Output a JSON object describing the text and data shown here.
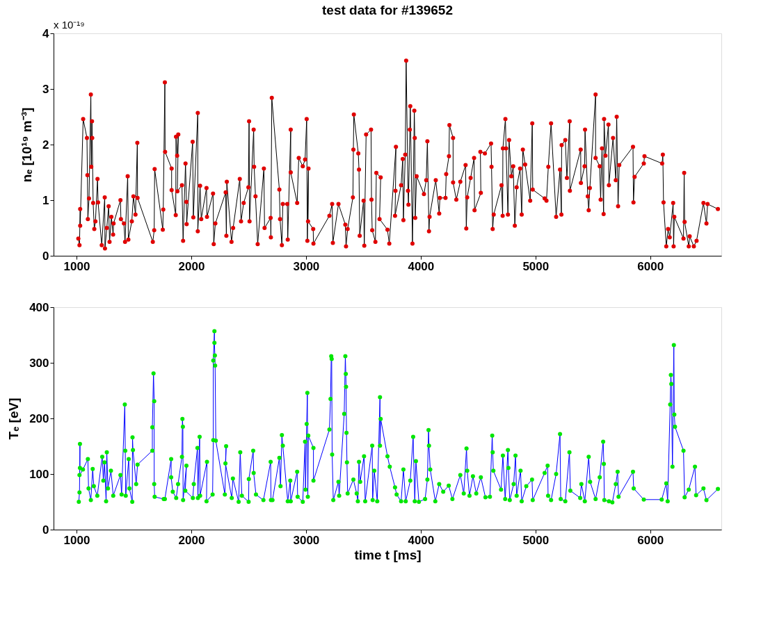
{
  "chart_data": [
    {
      "type": "line",
      "title": "test data for #139652",
      "ylabel": "nₑ [10¹⁹ m⁻³]",
      "annotations": [
        "x 10⁻¹⁹"
      ],
      "xlim": [
        800,
        6620
      ],
      "ylim": [
        0,
        4
      ],
      "xticks": [
        1000,
        2000,
        3000,
        4000,
        5000,
        6000
      ],
      "yticks": [
        0,
        1,
        2,
        3,
        4
      ],
      "grid": false,
      "marker": "circle",
      "series": [
        {
          "color": "#e00000",
          "x": [
            1016,
            1026,
            1032,
            1032,
            1058,
            1091,
            1095,
            1099,
            1109,
            1125,
            1129,
            1135,
            1137,
            1145,
            1155,
            1165,
            1183,
            1188,
            1220,
            1246,
            1248,
            1264,
            1280,
            1288,
            1304,
            1319,
            1323,
            1383,
            1387,
            1413,
            1423,
            1446,
            1452,
            1482,
            1496,
            1514,
            1530,
            1532,
            1665,
            1677,
            1681,
            1752,
            1756,
            1770,
            1772,
            1829,
            1829,
            1865,
            1867,
            1877,
            1887,
            1879,
            1919,
            1929,
            1950,
            1958,
            1960,
            2012,
            2018,
            2057,
            2057,
            2077,
            2087,
            2133,
            2137,
            2190,
            2196,
            2210,
            2300,
            2306,
            2310,
            2351,
            2365,
            2423,
            2434,
            2457,
            2498,
            2504,
            2508,
            2544,
            2548,
            2560,
            2579,
            2633,
            2639,
            2692,
            2694,
            2702,
            2768,
            2774,
            2790,
            2798,
            2837,
            2841,
            2867,
            2867,
            2923,
            2937,
            2972,
            2992,
            3006,
            3012,
            3022,
            3018,
            3063,
            3065,
            3204,
            3228,
            3234,
            3283,
            3343,
            3349,
            3363,
            3409,
            3413,
            3417,
            3456,
            3462,
            3468,
            3502,
            3508,
            3524,
            3567,
            3571,
            3577,
            3605,
            3613,
            3651,
            3641,
            3710,
            3726,
            3784,
            3780,
            3776,
            3829,
            3843,
            3849,
            3865,
            3873,
            3889,
            3893,
            3905,
            3909,
            3928,
            3944,
            3948,
            3952,
            3964,
            4028,
            4048,
            4058,
            4072,
            4077,
            4131,
            4161,
            4167,
            4216,
            4222,
            4246,
            4250,
            4282,
            4282,
            4310,
            4345,
            4391,
            4397,
            4405,
            4435,
            4465,
            4469,
            4524,
            4520,
            4559,
            4613,
            4617,
            4627,
            4636,
            4704,
            4714,
            4716,
            4738,
            4744,
            4760,
            4770,
            4790,
            4806,
            4820,
            4836,
            4866,
            4880,
            4890,
            4910,
            4954,
            4972,
            4976,
            5080,
            5096,
            5112,
            5136,
            5180,
            5214,
            5226,
            5228,
            5260,
            5274,
            5298,
            5300,
            5394,
            5396,
            5428,
            5432,
            5456,
            5464,
            5474,
            5524,
            5524,
            5560,
            5568,
            5580,
            5594,
            5598,
            5610,
            5636,
            5640,
            5676,
            5700,
            5708,
            5720,
            5730,
            5850,
            5854,
            5864,
            5944,
            5950,
            6104,
            6110,
            6116,
            6140,
            6156,
            6170,
            6200,
            6204,
            6210,
            6290,
            6296,
            6300,
            6336,
            6344,
            6380,
            6404,
            6464,
            6490,
            6500,
            6590
          ],
          "values": [
            0.31,
            0.19,
            0.84,
            0.54,
            2.46,
            2.12,
            1.45,
            0.66,
            1.03,
            2.9,
            1.6,
            2.42,
            2.12,
            0.95,
            0.48,
            0.62,
            1.38,
            0.96,
            0.19,
            1.05,
            0.13,
            0.5,
            0.89,
            0.25,
            0.7,
            0.38,
            0.58,
            1.0,
            0.66,
            0.58,
            0.25,
            1.43,
            0.29,
            0.62,
            1.07,
            0.74,
            2.03,
            1.04,
            0.25,
            0.46,
            1.56,
            0.47,
            0.83,
            3.12,
            1.87,
            1.57,
            1.18,
            0.73,
            2.14,
            1.8,
            2.18,
            1.16,
            1.27,
            0.27,
            1.66,
            0.97,
            0.57,
            2.05,
            0.69,
            2.57,
            0.44,
            1.26,
            0.66,
            1.22,
            0.7,
            1.12,
            0.21,
            0.58,
            1.14,
            0.36,
            1.33,
            0.25,
            0.5,
            1.38,
            0.62,
            0.95,
            1.23,
            2.42,
            0.62,
            2.27,
            1.6,
            1.07,
            0.21,
            1.57,
            0.5,
            0.68,
            0.33,
            2.84,
            1.19,
            0.66,
            0.19,
            0.93,
            0.93,
            0.29,
            2.27,
            1.5,
            0.95,
            1.76,
            1.61,
            1.73,
            2.46,
            0.27,
            1.57,
            0.62,
            0.48,
            0.22,
            0.72,
            0.93,
            0.23,
            0.93,
            0.56,
            0.17,
            0.48,
            1.05,
            1.91,
            2.54,
            1.84,
            1.55,
            0.36,
            0.99,
            0.18,
            2.18,
            2.27,
            1.01,
            0.46,
            0.25,
            1.49,
            1.41,
            0.66,
            0.47,
            0.22,
            1.96,
            1.17,
            0.72,
            1.27,
            1.74,
            0.64,
            1.82,
            3.51,
            1.17,
            0.92,
            2.27,
            2.69,
            0.22,
            2.61,
            2.12,
            0.68,
            1.43,
            1.11,
            1.36,
            2.06,
            0.44,
            0.7,
            1.36,
            0.76,
            1.04,
            1.04,
            1.47,
            1.79,
            2.35,
            2.12,
            1.32,
            1.01,
            1.33,
            1.63,
            0.49,
            1.05,
            1.4,
            1.76,
            0.82,
            1.13,
            1.87,
            1.84,
            2.02,
            1.6,
            0.48,
            0.74,
            1.27,
            0.72,
            1.93,
            2.46,
            1.93,
            0.74,
            2.08,
            1.43,
            1.61,
            0.54,
            1.23,
            1.57,
            0.74,
            1.91,
            1.64,
            0.99,
            2.38,
            1.19,
            1.03,
            0.99,
            1.6,
            2.38,
            0.7,
            1.55,
            0.74,
            1.99,
            2.08,
            1.4,
            2.42,
            1.17,
            1.91,
            1.31,
            1.61,
            2.27,
            1.07,
            0.82,
            1.22,
            2.9,
            1.76,
            1.61,
            1.01,
            1.93,
            0.75,
            2.46,
            1.8,
            2.36,
            1.27,
            2.12,
            1.36,
            2.5,
            0.89,
            1.63,
            1.96,
            0.96,
            1.42,
            1.66,
            1.79,
            1.66,
            1.82,
            0.96,
            0.17,
            0.48,
            0.33,
            0.95,
            0.17,
            0.7,
            0.31,
            1.49,
            0.61,
            0.17,
            0.35,
            0.17,
            0.27,
            0.95,
            0.58,
            0.93,
            0.84
          ]
        }
      ]
    },
    {
      "type": "line",
      "xlabel": "time t [ms]",
      "ylabel": "Tₑ [eV]",
      "xlim": [
        800,
        6620
      ],
      "ylim": [
        0,
        400
      ],
      "xticks": [
        1000,
        2000,
        3000,
        4000,
        5000,
        6000
      ],
      "yticks": [
        0,
        100,
        200,
        300,
        400
      ],
      "grid": false,
      "marker": "circle",
      "series": [
        {
          "color": "#00e600",
          "x": [
            1020,
            1026,
            1030,
            1030,
            1026,
            1056,
            1099,
            1105,
            1125,
            1141,
            1151,
            1181,
            1224,
            1234,
            1244,
            1258,
            1264,
            1274,
            1300,
            1320,
            1383,
            1393,
            1421,
            1425,
            1429,
            1455,
            1461,
            1486,
            1488,
            1492,
            1520,
            1532,
            1661,
            1661,
            1671,
            1677,
            1677,
            1681,
            1760,
            1770,
            1825,
            1825,
            1839,
            1869,
            1885,
            1919,
            1923,
            1927,
            1929,
            1958,
            1948,
            2014,
            2022,
            2054,
            2058,
            2073,
            2077,
            2137,
            2133,
            2186,
            2192,
            2192,
            2202,
            2202,
            2206,
            2208,
            2214,
            2293,
            2304,
            2298,
            2353,
            2363,
            2413,
            2427,
            2441,
            2500,
            2502,
            2540,
            2544,
            2564,
            2629,
            2692,
            2695,
            2708,
            2768,
            2778,
            2790,
            2798,
            2841,
            2863,
            2867,
            2923,
            2927,
            2972,
            2992,
            2996,
            3006,
            3012,
            3016,
            3020,
            3065,
            3065,
            3204,
            3214,
            3220,
            3224,
            3228,
            3238,
            3283,
            3289,
            3333,
            3343,
            3347,
            3349,
            3353,
            3357,
            3363,
            3413,
            3442,
            3452,
            3462,
            3472,
            3506,
            3516,
            3577,
            3581,
            3595,
            3621,
            3645,
            3645,
            3651,
            3710,
            3730,
            3776,
            3790,
            3829,
            3849,
            3869,
            3909,
            3934,
            3948,
            3958,
            3984,
            4038,
            4058,
            4068,
            4072,
            4083,
            4127,
            4161,
            4196,
            4244,
            4276,
            4345,
            4375,
            4399,
            4405,
            4425,
            4455,
            4484,
            4524,
            4564,
            4603,
            4623,
            4627,
            4633,
            4700,
            4716,
            4736,
            4760,
            4764,
            4776,
            4810,
            4826,
            4836,
            4870,
            4880,
            4920,
            4970,
            4976,
            5080,
            5106,
            5110,
            5136,
            5180,
            5214,
            5220,
            5260,
            5296,
            5304,
            5390,
            5400,
            5430,
            5464,
            5476,
            5524,
            5560,
            5590,
            5596,
            5600,
            5640,
            5670,
            5700,
            5716,
            5724,
            5850,
            5856,
            5944,
            6100,
            6140,
            6152,
            6174,
            6180,
            6184,
            6194,
            6206,
            6210,
            6216,
            6290,
            6300,
            6336,
            6390,
            6400,
            6464,
            6490,
            6590
          ],
          "values": [
            50,
            67,
            154,
            111,
            98,
            108,
            127,
            74,
            53,
            109,
            78,
            61,
            131,
            88,
            121,
            51,
            139,
            74,
            106,
            61,
            98,
            63,
            225,
            142,
            61,
            127,
            74,
            50,
            166,
            143,
            82,
            117,
            142,
            184,
            281,
            231,
            82,
            59,
            55,
            55,
            127,
            94,
            68,
            57,
            82,
            131,
            199,
            185,
            53,
            115,
            70,
            57,
            82,
            147,
            57,
            167,
            61,
            122,
            51,
            63,
            161,
            304,
            357,
            336,
            313,
            295,
            160,
            63,
            150,
            119,
            57,
            92,
            50,
            139,
            61,
            50,
            91,
            142,
            102,
            63,
            53,
            122,
            53,
            53,
            129,
            78,
            170,
            151,
            51,
            88,
            51,
            104,
            59,
            50,
            158,
            72,
            190,
            246,
            59,
            169,
            147,
            88,
            180,
            235,
            312,
            307,
            135,
            53,
            86,
            61,
            208,
            312,
            280,
            257,
            174,
            121,
            65,
            90,
            65,
            51,
            122,
            86,
            132,
            51,
            151,
            53,
            106,
            51,
            238,
            151,
            199,
            132,
            113,
            76,
            63,
            51,
            108,
            51,
            88,
            167,
            51,
            123,
            50,
            55,
            90,
            179,
            151,
            108,
            51,
            82,
            68,
            79,
            55,
            98,
            65,
            146,
            106,
            61,
            96,
            65,
            94,
            58,
            59,
            169,
            139,
            106,
            72,
            133,
            55,
            143,
            111,
            53,
            82,
            133,
            61,
            106,
            51,
            78,
            90,
            53,
            102,
            115,
            61,
            53,
            100,
            172,
            55,
            51,
            139,
            70,
            57,
            82,
            51,
            131,
            86,
            55,
            94,
            158,
            118,
            53,
            51,
            49,
            82,
            104,
            59,
            104,
            74,
            54,
            54,
            83,
            51,
            225,
            278,
            262,
            113,
            332,
            207,
            185,
            142,
            58,
            72,
            113,
            62,
            74,
            53,
            73
          ]
        }
      ]
    }
  ]
}
